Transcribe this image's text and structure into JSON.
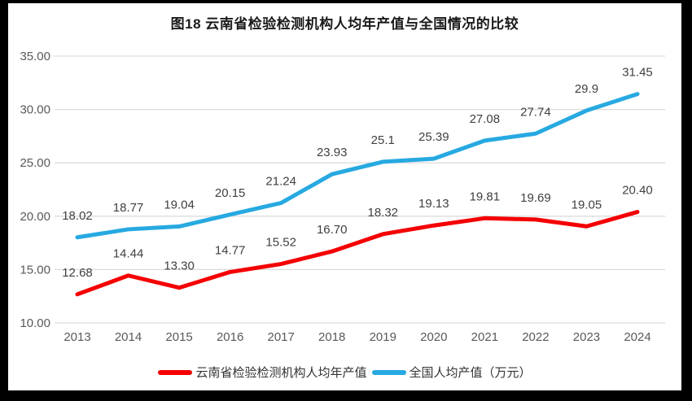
{
  "page": {
    "border_color": "#000000",
    "panel_background": "#ffffff"
  },
  "chart_data": {
    "type": "line",
    "title": "图18  云南省检验检测机构人均年产值与全国情况的比较",
    "categories": [
      "2013",
      "2014",
      "2015",
      "2016",
      "2017",
      "2018",
      "2019",
      "2020",
      "2021",
      "2022",
      "2023",
      "2024"
    ],
    "series": [
      {
        "name": "云南省检验检测机构人均年产值",
        "color": "#F40000",
        "values": [
          12.68,
          14.44,
          13.3,
          14.77,
          15.52,
          16.7,
          18.32,
          19.13,
          19.81,
          19.69,
          19.05,
          20.4
        ],
        "labels": [
          "12.68",
          "14.44",
          "13.30",
          "14.77",
          "15.52",
          "16.70",
          "18.32",
          "19.13",
          "19.81",
          "19.69",
          "19.05",
          "20.40"
        ]
      },
      {
        "name": "全国人均产值（万元）",
        "color": "#27A9E1",
        "values": [
          18.02,
          18.77,
          19.04,
          20.15,
          21.24,
          23.93,
          25.1,
          25.39,
          27.08,
          27.74,
          29.9,
          31.45
        ],
        "labels": [
          "18.02",
          "18.77",
          "19.04",
          "20.15",
          "21.24",
          "23.93",
          "25.1",
          "25.39",
          "27.08",
          "27.74",
          "29.9",
          "31.45"
        ]
      }
    ],
    "ylim": [
      10,
      35
    ],
    "ytick_labels": [
      "10.00",
      "15.00",
      "20.00",
      "25.00",
      "30.00",
      "35.00"
    ],
    "ytick_values": [
      10,
      15,
      20,
      25,
      30,
      35
    ],
    "grid": true,
    "legend_position": "bottom",
    "colors": {
      "gridline": "#DCDCDC",
      "axis_label": "#595959",
      "data_label": "#404040",
      "title": "#1A1A1A"
    }
  }
}
